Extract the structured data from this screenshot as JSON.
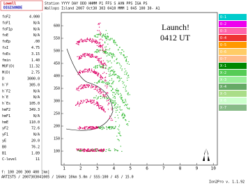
{
  "logo": {
    "top": "Lowell",
    "bottom": "DIGISONDE"
  },
  "header": {
    "line1": "Station        YYYY DAY  DDD HHMM P1  FFS S AXN PPS IGA PS",
    "line2": "Wallops Island 2007 Oct30  303 0410 MMM  1 045 100  30- A1"
  },
  "params": [
    [
      "foF2",
      "4.000"
    ],
    [
      "foF1",
      "N/A"
    ],
    [
      "foF1p",
      "N/A"
    ],
    [
      "foE",
      "N/A"
    ],
    [
      "foEp",
      ".00"
    ],
    [
      "fxI",
      "4.75"
    ],
    [
      "foEs",
      "3.15"
    ],
    [
      "fmin",
      "1.40"
    ],
    [
      "MUF(D)",
      "11.32"
    ],
    [
      "M(D)",
      "2.75"
    ],
    [
      "D",
      "3000.0"
    ],
    [
      "h`F",
      "305.0"
    ],
    [
      "h`F2",
      "N/A"
    ],
    [
      "h`E",
      "N/A"
    ],
    [
      "h`Es",
      "105.0"
    ],
    [
      "hmF2",
      "349.3"
    ],
    [
      "hmF1",
      "N/A"
    ],
    [
      "hmE",
      "110.0"
    ],
    [
      "yF2",
      "72.6"
    ],
    [
      "yF1",
      "N/A"
    ],
    [
      "yE",
      "20.0"
    ],
    [
      "B0",
      "76.2"
    ],
    [
      "B1",
      "1.89"
    ],
    [
      "C-level",
      "11"
    ]
  ],
  "y_ticks": [
    "600",
    "550",
    "500",
    "450",
    "400",
    "350",
    "300",
    "250",
    "200",
    "150",
    "100"
  ],
  "x_ticks": [
    "1",
    "2",
    "3",
    "4",
    "5",
    "6",
    "7",
    "8",
    "9",
    "10"
  ],
  "annotation": {
    "line1": "Launch!",
    "line2": "0412 UT"
  },
  "legend": [
    "O-1",
    "O-2",
    "O-3",
    "O-4",
    "O-5",
    "O-6",
    "O-7",
    "X-1",
    "X-2",
    "X-3",
    "X-4",
    "X-5",
    "X-6",
    "X-7"
  ],
  "footer": {
    "line1": "f:   100  200  300  400  [km]",
    "line2": "ARTIST5 / 2007303041005 / 16kHz 10km 5.0m / SSS:100 / 45 / 15.0",
    "line3": "Ion2Pro v. 1.1.92"
  }
}
